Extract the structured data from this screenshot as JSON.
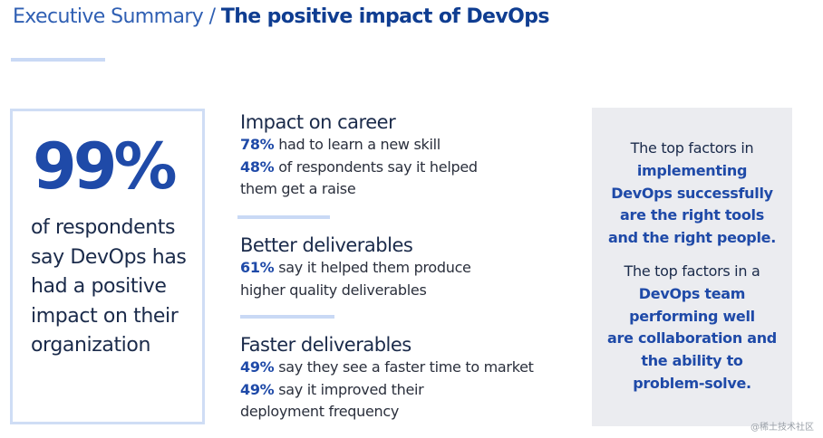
{
  "header": {
    "title_prefix": "Executive Summary / ",
    "title_main": "The positive impact of DevOps"
  },
  "stat": {
    "value": "99%",
    "text": "of respondents say DevOps has had a positive impact on their organization"
  },
  "sections": [
    {
      "heading": "Impact on career",
      "lines": [
        {
          "pct": "78%",
          "text": " had to learn a new skill"
        },
        {
          "pct": "48%",
          "text": " of respondents say it helped"
        },
        {
          "pct": "",
          "text": "them get a raise"
        }
      ]
    },
    {
      "heading": "Better deliverables",
      "lines": [
        {
          "pct": "61%",
          "text": " say it helped them produce"
        },
        {
          "pct": "",
          "text": "higher quality deliverables"
        }
      ]
    },
    {
      "heading": "Faster deliverables",
      "lines": [
        {
          "pct": "49%",
          "text": " say they see a faster time to market"
        },
        {
          "pct": "49%",
          "text": " say it improved their"
        },
        {
          "pct": "",
          "text": "deployment frequency"
        }
      ]
    }
  ],
  "sidebar": {
    "block1": {
      "plain": "The top factors in",
      "emphasis": [
        "implementing",
        "DevOps successfully",
        "are the right tools",
        "and the right people."
      ]
    },
    "block2": {
      "plain": "The top factors in a",
      "emphasis": [
        "DevOps team",
        "performing well",
        "are collaboration and",
        "the ability to",
        "problem-solve."
      ]
    }
  },
  "watermark": "@稀土技术社区",
  "colors": {
    "accent": "#1f4aa8",
    "rule": "#c9d9f5",
    "sidebar_bg": "#ebecf0"
  }
}
